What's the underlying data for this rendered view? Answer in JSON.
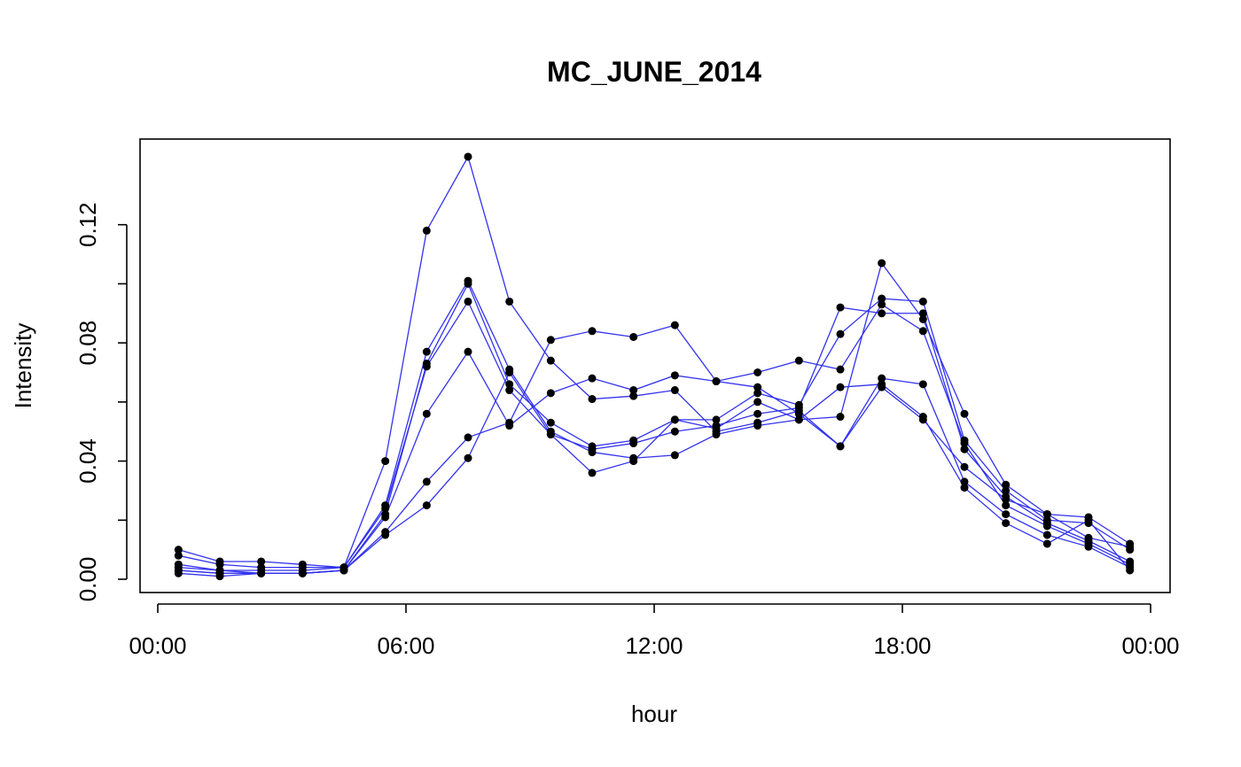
{
  "chart_data": {
    "type": "line",
    "title": "MC_JUNE_2014",
    "xlabel": "hour",
    "ylabel": "Intensity",
    "x": [
      0.5,
      1.5,
      2.5,
      3.5,
      4.5,
      5.5,
      6.5,
      7.5,
      8.5,
      9.5,
      10.5,
      11.5,
      12.5,
      13.5,
      14.5,
      15.5,
      16.5,
      17.5,
      18.5,
      19.5,
      20.5,
      21.5,
      22.5,
      23.5
    ],
    "xlim": [
      0,
      24
    ],
    "ylim": [
      0,
      0.14
    ],
    "xticks": [
      0,
      6,
      12,
      18,
      24
    ],
    "xtick_labels": [
      "00:00",
      "06:00",
      "12:00",
      "18:00",
      "00:00"
    ],
    "yticks": [
      0,
      0.02,
      0.04,
      0.06,
      0.08,
      0.1,
      0.12
    ],
    "ytick_labels": [
      "0.00",
      "",
      "0.04",
      "",
      "0.08",
      "",
      "0.12"
    ],
    "line_color": "#3333ee",
    "point_color": "#000000",
    "grid": false,
    "series": [
      {
        "values": [
          0.01,
          0.006,
          0.006,
          0.005,
          0.004,
          0.04,
          0.118,
          0.143,
          0.094,
          0.074,
          0.061,
          0.062,
          0.064,
          0.05,
          0.053,
          0.057,
          0.045,
          0.065,
          0.054,
          0.038,
          0.027,
          0.022,
          0.021,
          0.012
        ]
      },
      {
        "values": [
          0.008,
          0.005,
          0.004,
          0.004,
          0.004,
          0.025,
          0.077,
          0.101,
          0.071,
          0.05,
          0.043,
          0.041,
          0.042,
          0.049,
          0.052,
          0.054,
          0.055,
          0.107,
          0.088,
          0.056,
          0.032,
          0.022,
          0.014,
          0.011
        ]
      },
      {
        "values": [
          0.005,
          0.003,
          0.002,
          0.002,
          0.003,
          0.022,
          0.073,
          0.1,
          0.066,
          0.053,
          0.045,
          0.047,
          0.054,
          0.054,
          0.063,
          0.059,
          0.083,
          0.095,
          0.094,
          0.047,
          0.03,
          0.02,
          0.019,
          0.01
        ]
      },
      {
        "values": [
          0.004,
          0.003,
          0.003,
          0.003,
          0.004,
          0.024,
          0.072,
          0.094,
          0.064,
          0.049,
          0.044,
          0.046,
          0.05,
          0.052,
          0.056,
          0.058,
          0.092,
          0.09,
          0.09,
          0.044,
          0.028,
          0.019,
          0.013,
          0.006
        ]
      },
      {
        "values": [
          0.003,
          0.002,
          0.002,
          0.002,
          0.003,
          0.021,
          0.056,
          0.077,
          0.052,
          0.063,
          0.068,
          0.064,
          0.069,
          0.067,
          0.07,
          0.074,
          0.071,
          0.093,
          0.084,
          0.046,
          0.025,
          0.018,
          0.012,
          0.005
        ]
      },
      {
        "values": [
          0.003,
          0.002,
          0.002,
          0.002,
          0.003,
          0.016,
          0.033,
          0.048,
          0.053,
          0.081,
          0.084,
          0.082,
          0.086,
          0.067,
          0.065,
          0.056,
          0.045,
          0.068,
          0.066,
          0.033,
          0.022,
          0.015,
          0.011,
          0.004
        ]
      },
      {
        "values": [
          0.002,
          0.001,
          0.002,
          0.002,
          0.003,
          0.015,
          0.025,
          0.041,
          0.07,
          0.049,
          0.036,
          0.04,
          0.054,
          0.051,
          0.06,
          0.054,
          0.065,
          0.066,
          0.055,
          0.031,
          0.019,
          0.012,
          0.02,
          0.003
        ]
      }
    ]
  }
}
